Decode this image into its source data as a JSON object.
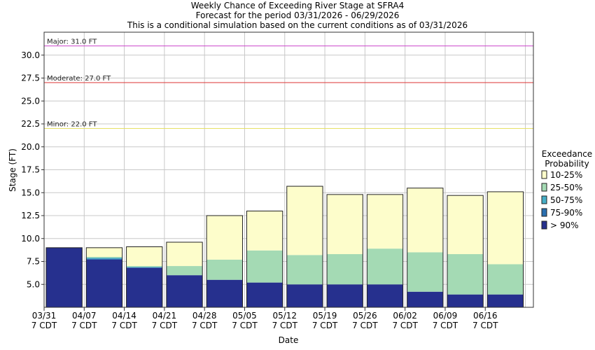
{
  "chart_data": {
    "type": "bar",
    "stacked": true,
    "title_lines": [
      "Weekly Chance of Exceeding River Stage at SFRA4",
      "Forecast for the period 03/31/2026 - 06/29/2026",
      "This is a conditional simulation based on the current conditions as of 03/31/2026"
    ],
    "xlabel": "Date",
    "ylabel": "Stage (FT)",
    "ylim": [
      2.5,
      32.5
    ],
    "yticks": [
      5.0,
      7.5,
      10.0,
      12.5,
      15.0,
      17.5,
      20.0,
      22.5,
      25.0,
      27.5,
      30.0
    ],
    "ytick_labels": [
      "5.0",
      "7.5",
      "10.0",
      "12.5",
      "15.0",
      "17.5",
      "20.0",
      "22.5",
      "25.0",
      "27.5",
      "30.0"
    ],
    "grid": true,
    "xtick_labels": [
      "03/31",
      "04/07",
      "04/14",
      "04/21",
      "04/28",
      "05/05",
      "05/12",
      "05/19",
      "05/26",
      "06/02",
      "06/09",
      "06/16"
    ],
    "xtick_sublabel": "7 CDT",
    "flood_levels": [
      {
        "label": "Major: 31.0 FT",
        "value": 31.0,
        "color": "#cc44cc"
      },
      {
        "label": "Moderate: 27.0 FT",
        "value": 27.0,
        "color": "#dd3333"
      },
      {
        "label": "Minor: 22.0 FT",
        "value": 22.0,
        "color": "#e6e066"
      }
    ],
    "legend_title": [
      "Exceedance",
      "Probability"
    ],
    "legend_position": "right",
    "series": [
      {
        "name": "> 90%",
        "color": "#26308e"
      },
      {
        "name": "75-90%",
        "color": "#2a6fb0"
      },
      {
        "name": "50-75%",
        "color": "#46aec6"
      },
      {
        "name": "25-50%",
        "color": "#a4dab4"
      },
      {
        "name": "10-25%",
        "color": "#fdfdcb"
      }
    ],
    "legend_order": [
      "10-25%",
      "25-50%",
      "50-75%",
      "75-90%",
      "> 90%"
    ],
    "weeks": [
      {
        "start": "03/31",
        "levels": [
          9.0,
          9.0,
          9.0,
          9.0,
          9.0
        ]
      },
      {
        "start": "04/07",
        "levels": [
          7.7,
          7.8,
          7.9,
          8.0,
          9.0
        ]
      },
      {
        "start": "04/14",
        "levels": [
          6.8,
          6.85,
          6.9,
          7.0,
          9.1
        ]
      },
      {
        "start": "04/21",
        "levels": [
          6.0,
          6.0,
          6.0,
          7.0,
          9.6
        ]
      },
      {
        "start": "04/28",
        "levels": [
          5.5,
          5.5,
          5.5,
          7.7,
          12.5
        ]
      },
      {
        "start": "05/05",
        "levels": [
          5.2,
          5.2,
          5.2,
          8.7,
          13.0
        ]
      },
      {
        "start": "05/12",
        "levels": [
          5.0,
          5.0,
          5.0,
          8.2,
          15.7
        ]
      },
      {
        "start": "05/19",
        "levels": [
          5.0,
          5.0,
          5.0,
          8.3,
          14.8
        ]
      },
      {
        "start": "05/26",
        "levels": [
          5.0,
          5.0,
          5.0,
          8.9,
          14.8
        ]
      },
      {
        "start": "06/02",
        "levels": [
          4.2,
          4.2,
          4.2,
          8.5,
          15.5
        ]
      },
      {
        "start": "06/09",
        "levels": [
          3.9,
          3.9,
          3.9,
          8.3,
          14.7
        ]
      },
      {
        "start": "06/16",
        "levels": [
          3.9,
          3.9,
          3.9,
          7.2,
          15.1
        ]
      }
    ]
  }
}
